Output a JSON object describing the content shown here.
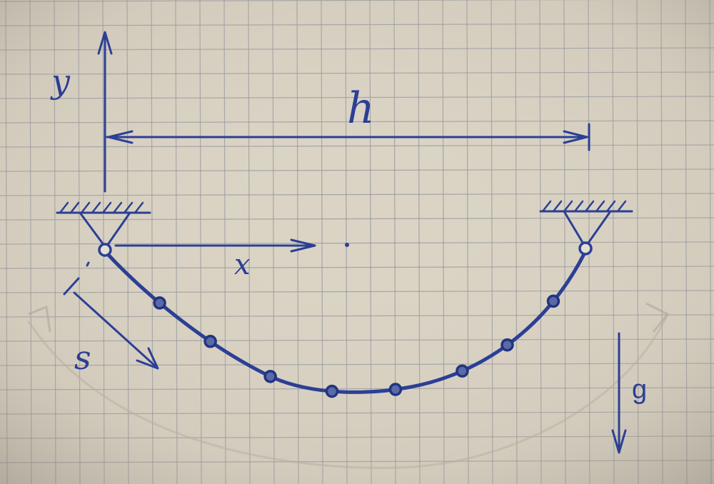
{
  "diagram": {
    "labels": {
      "y_axis": "y",
      "span": "h",
      "x_axis": "x",
      "arc_length": "s",
      "gravity": "g"
    },
    "colors": {
      "paper": "#dbd4c5",
      "grid": "#8f939a",
      "ink": "#2c3f95",
      "typed_ink": "#34479e"
    },
    "bead_count": 8
  }
}
